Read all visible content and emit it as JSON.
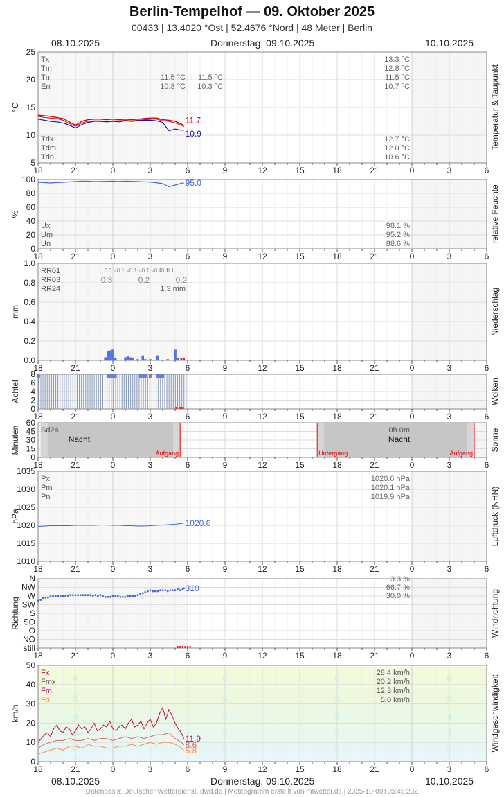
{
  "header": {
    "title": "Berlin-Tempelhof  —  09. Oktober 2025",
    "subtitle": "00433  |  13.4020 °Ost  |  52.4676 °Nord  |  48 Meter  |  Berlin",
    "date_left": "08.10.2025",
    "date_center": "Donnerstag, 09.10.2025",
    "date_right": "10.10.2025"
  },
  "footer": "Datenbasis: Deutscher Wetterdienst, dwd.de | Meteogramm erstellt von mtwetter.de | 2025-10-09T05:45:23Z",
  "colors": {
    "grid": "#dddddd",
    "frame": "#888888",
    "red": "#e00000",
    "blue": "#1010cc",
    "hum": "#4466dd",
    "rain": "#5577ee",
    "sun_night": "#c4c4c4",
    "marker": "#ee2222",
    "wind_fx": "#cc0044",
    "wind_fmx": "#dd6666",
    "wind_fn": "#ff8844"
  },
  "x_axis": {
    "ticks": [
      "18",
      "21",
      "0",
      "3",
      "6",
      "9",
      "12",
      "15",
      "18",
      "21",
      "0",
      "3",
      "6"
    ],
    "hours_start": 0,
    "hours_end": 36,
    "now_hour": 11.7
  },
  "chart_data": [
    {
      "id": "temperature",
      "type": "line",
      "ylabel": "°C",
      "side_label": "Temperatur & Taupunkt",
      "ylim": [
        5,
        25
      ],
      "yticks": [
        5,
        10,
        15,
        20,
        25
      ],
      "stats_top": [
        {
          "label": "Tx",
          "values": [
            "",
            "",
            "13.3 °C"
          ]
        },
        {
          "label": "Tm",
          "values": [
            "",
            "",
            "12.8 °C"
          ]
        },
        {
          "label": "Tn",
          "values": [
            "11.5 °C",
            "11.5 °C",
            "11.5 °C"
          ]
        },
        {
          "label": "En",
          "values": [
            "10.3 °C",
            "10.3 °C",
            "10.7 °C"
          ]
        }
      ],
      "stats_bottom": [
        {
          "label": "Tdx",
          "values": [
            "12.7 °C"
          ]
        },
        {
          "label": "Tdm",
          "values": [
            "12.0 °C"
          ]
        },
        {
          "label": "Tdn",
          "values": [
            "10.6 °C"
          ]
        }
      ],
      "series": [
        {
          "name": "Temperatur",
          "last_label": "11.7",
          "x": [
            0,
            0.5,
            1,
            1.5,
            2,
            2.5,
            3,
            3.5,
            4,
            4.5,
            5,
            5.5,
            6,
            6.5,
            7,
            7.5,
            8,
            8.5,
            9,
            9.5,
            10,
            10.5,
            11,
            11.5,
            11.7
          ],
          "y": [
            13.6,
            13.5,
            13.4,
            13.2,
            13.0,
            12.4,
            11.8,
            12.5,
            12.8,
            12.9,
            12.9,
            12.8,
            12.9,
            12.8,
            12.9,
            12.8,
            12.9,
            13.0,
            13.1,
            13.1,
            12.8,
            12.7,
            12.5,
            12.0,
            11.7
          ]
        },
        {
          "name": "Temperatur 2",
          "x": [
            0,
            0.5,
            1,
            1.5,
            2,
            2.5,
            3,
            3.5,
            4,
            4.5,
            5,
            5.5,
            6,
            6.5,
            7,
            7.5,
            8,
            8.5,
            9,
            9.5,
            10,
            10.5,
            11,
            11.5,
            11.7
          ],
          "y": [
            13.4,
            13.2,
            13.1,
            13.0,
            12.7,
            12.1,
            11.6,
            12.2,
            12.5,
            12.6,
            12.6,
            12.5,
            12.6,
            12.6,
            12.7,
            12.6,
            12.7,
            12.8,
            12.9,
            12.9,
            12.6,
            12.5,
            12.2,
            11.8,
            11.5
          ]
        },
        {
          "name": "Taupunkt",
          "last_label": "10.9",
          "x": [
            0,
            0.5,
            1,
            1.5,
            2,
            2.5,
            3,
            3.5,
            4,
            4.5,
            5,
            5.5,
            6,
            6.5,
            7,
            7.5,
            8,
            8.5,
            9,
            9.5,
            10,
            10.5,
            11,
            11.5,
            11.7
          ],
          "y": [
            12.9,
            12.7,
            12.5,
            12.4,
            12.2,
            11.8,
            11.3,
            11.9,
            12.3,
            12.5,
            12.5,
            12.4,
            12.5,
            12.4,
            12.6,
            12.5,
            12.6,
            12.7,
            12.7,
            12.6,
            12.3,
            10.8,
            11.1,
            10.9,
            10.9
          ]
        }
      ]
    },
    {
      "id": "humidity",
      "type": "line",
      "ylabel": "%",
      "side_label": "relative Feuchte",
      "ylim": [
        0,
        100
      ],
      "yticks": [
        0,
        20,
        40,
        60,
        80,
        100
      ],
      "stats": [
        {
          "label": "Ux",
          "value": "98.1 %"
        },
        {
          "label": "Um",
          "value": "95.2 %"
        },
        {
          "label": "Un",
          "value": "88.6 %"
        }
      ],
      "series": [
        {
          "name": "Feuchte",
          "last_label": "95.0",
          "x": [
            0,
            0.5,
            1,
            1.5,
            2,
            2.5,
            3,
            3.5,
            4,
            4.5,
            5,
            5.5,
            6,
            6.5,
            7,
            7.5,
            8,
            8.5,
            9,
            9.5,
            10,
            10.5,
            11,
            11.5,
            11.7
          ],
          "y": [
            96,
            95.5,
            95,
            95.6,
            96,
            96.5,
            97,
            97.5,
            97.5,
            97,
            97.2,
            97.4,
            97.5,
            97.2,
            97.5,
            97.4,
            97,
            96.6,
            96.2,
            95.4,
            94,
            89.5,
            92,
            94.5,
            95
          ]
        }
      ]
    },
    {
      "id": "precipitation",
      "type": "bar",
      "ylabel": "mm",
      "side_label": "Niederschlag",
      "ylim": [
        0,
        1.0
      ],
      "yticks": [
        0.0,
        0.2,
        0.4,
        0.6,
        0.8,
        1.0
      ],
      "rr_labels": [
        "RR01",
        "RR03",
        "RR24"
      ],
      "rr01_values": [
        "0.3",
        "<0.1",
        "<0.1",
        "<0.1",
        "<0.1",
        "<0.1",
        "0.1"
      ],
      "rr03_values": [
        "0.3",
        "0.2",
        "0.2"
      ],
      "rr24_value": "1.3 mm",
      "bars": {
        "x": [
          5.4,
          5.6,
          5.8,
          6.0,
          6.2,
          7.0,
          7.2,
          7.4,
          7.6,
          8.0,
          8.4,
          8.6,
          9.0,
          9.6,
          10.4,
          11.0,
          11.2
        ],
        "y": [
          0.03,
          0.09,
          0.1,
          0.11,
          0.02,
          0.03,
          0.04,
          0.03,
          0.02,
          0.01,
          0.05,
          0.01,
          0.01,
          0.05,
          0.01,
          0.11,
          0.02
        ]
      },
      "missing_markers": [
        11.5,
        11.7
      ]
    },
    {
      "id": "clouds",
      "type": "bar",
      "ylabel": "Achtel",
      "side_label": "Wolken",
      "ylim": [
        0,
        8
      ],
      "yticks": [
        0,
        2,
        4,
        6,
        8
      ],
      "values": [
        8,
        8,
        8,
        8,
        8,
        8,
        8,
        8,
        8,
        8,
        8,
        8,
        8,
        8,
        8,
        8,
        8,
        8,
        8,
        8,
        8,
        8,
        8,
        8,
        8,
        8,
        8,
        8,
        8,
        8,
        8,
        8,
        8,
        8,
        8,
        8,
        8,
        8,
        8,
        8,
        8,
        8,
        8,
        8,
        8,
        8,
        8,
        8,
        8,
        8,
        8,
        8,
        8,
        8,
        8,
        8,
        8,
        8,
        8,
        8,
        8,
        8,
        8,
        8,
        8,
        8,
        8,
        8,
        8,
        8
      ],
      "highlight_hours": [
        0.05,
        5.6,
        5.8,
        6.0,
        6.2,
        8.2,
        8.4,
        8.6,
        9.0,
        9.6,
        9.8,
        10.0
      ],
      "missing_markers": [
        11.1,
        11.4,
        11.6
      ]
    },
    {
      "id": "sunshine",
      "type": "area",
      "ylabel": "Minuten",
      "side_label": "Sonne",
      "ylim": [
        0,
        60
      ],
      "yticks": [
        0,
        15,
        30,
        45,
        60
      ],
      "sd24_label": "Sd24",
      "sd24_value": "0h 0m",
      "night_label": "Nacht",
      "night_periods": [
        [
          0.2,
          11.4
        ],
        [
          22.4,
          35.0
        ]
      ],
      "events": [
        {
          "hour": 11.4,
          "label": "Aufgang",
          "anchor": "end"
        },
        {
          "hour": 22.4,
          "label": "Untergang",
          "anchor": "start"
        },
        {
          "hour": 35.0,
          "label": "Aufgang",
          "anchor": "end"
        }
      ]
    },
    {
      "id": "pressure",
      "type": "line",
      "ylabel": "hPa",
      "side_label": "Luftdruck (NHN)",
      "ylim": [
        1010,
        1035
      ],
      "yticks": [
        1010,
        1015,
        1020,
        1025,
        1030,
        1035
      ],
      "stats": [
        {
          "label": "Px",
          "value": "1020.6 hPa"
        },
        {
          "label": "Pm",
          "value": "1020.1 hPa"
        },
        {
          "label": "Pn",
          "value": "1019.9 hPa"
        }
      ],
      "series": [
        {
          "name": "Luftdruck",
          "last_label": "1020.6",
          "x": [
            0,
            0.5,
            1,
            1.5,
            2,
            2.5,
            3,
            3.5,
            4,
            4.5,
            5,
            5.5,
            6,
            6.5,
            7,
            7.5,
            8,
            8.5,
            9,
            9.5,
            10,
            10.5,
            11,
            11.5,
            11.7
          ],
          "y": [
            1019.7,
            1019.8,
            1019.9,
            1019.9,
            1019.9,
            1019.9,
            1020.0,
            1020.0,
            1020.0,
            1020.0,
            1020.1,
            1020.1,
            1020.0,
            1020.0,
            1019.9,
            1019.9,
            1019.8,
            1019.8,
            1019.9,
            1020.0,
            1020.1,
            1020.2,
            1020.3,
            1020.5,
            1020.6
          ]
        }
      ]
    },
    {
      "id": "wind_direction",
      "type": "scatter",
      "ylabel": "Richtung",
      "side_label": "Windrichtung",
      "categories": [
        "still",
        "NO",
        "O",
        "SO",
        "S",
        "SW",
        "W",
        "NW",
        "N"
      ],
      "stats": [
        "3.3 %",
        "66.7 %",
        "30.0 %"
      ],
      "last_label": "310",
      "x": [
        0,
        0.2,
        0.4,
        0.6,
        0.8,
        1,
        1.2,
        1.4,
        1.6,
        1.8,
        2,
        2.2,
        2.4,
        2.6,
        2.8,
        3,
        3.2,
        3.4,
        3.6,
        3.8,
        4,
        4.2,
        4.4,
        4.6,
        4.8,
        5,
        5.2,
        5.4,
        5.6,
        5.8,
        6,
        6.2,
        6.4,
        6.6,
        6.8,
        7,
        7.2,
        7.4,
        7.6,
        7.8,
        8,
        8.2,
        8.4,
        8.6,
        8.8,
        9,
        9.2,
        9.4,
        9.6,
        9.8,
        10,
        10.2,
        10.4,
        10.6,
        10.8,
        11,
        11.2,
        11.4,
        11.6,
        11.7
      ],
      "y": [
        245,
        250,
        258,
        262,
        262,
        268,
        270,
        270,
        270,
        270,
        270,
        270,
        272,
        275,
        275,
        275,
        275,
        275,
        275,
        275,
        275,
        275,
        272,
        275,
        270,
        275,
        270,
        265,
        265,
        265,
        270,
        270,
        270,
        265,
        265,
        265,
        270,
        270,
        270,
        270,
        275,
        280,
        285,
        290,
        295,
        300,
        295,
        295,
        295,
        300,
        300,
        300,
        295,
        300,
        300,
        300,
        305,
        300,
        305,
        310
      ],
      "still_markers": [
        11.2,
        11.4,
        11.6,
        11.8,
        12.0,
        12.2
      ]
    },
    {
      "id": "wind_speed",
      "type": "line",
      "ylabel": "km/h",
      "side_label": "Windgeschwindigkeit",
      "ylim": [
        0,
        50
      ],
      "yticks": [
        0,
        10,
        20,
        30,
        40,
        50
      ],
      "stats": [
        {
          "label": "Fx",
          "value": "28.4 km/h",
          "color": "#cc0044"
        },
        {
          "label": "Fmx",
          "value": "20.2 km/h",
          "color": "#555555"
        },
        {
          "label": "Fm",
          "value": "12.3 km/h",
          "color": "#cc0044"
        },
        {
          "label": "Fn",
          "value": "5.0 km/h",
          "color": "#ff8844"
        }
      ],
      "beaufort_bands": [
        {
          "bf": "1",
          "from": 0,
          "to": 5,
          "color": "#e8f8f8"
        },
        {
          "bf": "2",
          "from": 5,
          "to": 11,
          "color": "#e6f6f4"
        },
        {
          "bf": "3",
          "from": 11,
          "to": 19,
          "color": "#e8f8ee"
        },
        {
          "bf": "4",
          "from": 19,
          "to": 28,
          "color": "#eaf8e6"
        },
        {
          "bf": "5",
          "from": 28,
          "to": 38,
          "color": "#eef8de"
        },
        {
          "bf": "6",
          "from": 38,
          "to": 49,
          "color": "#f2fadc"
        }
      ],
      "beaufort_label_hours": [
        3,
        15,
        24,
        33
      ],
      "series": [
        {
          "name": "Fx",
          "color": "#cc0044",
          "last_label": "11.9",
          "x": [
            0,
            0.25,
            0.5,
            0.75,
            1,
            1.25,
            1.5,
            1.75,
            2,
            2.25,
            2.5,
            2.75,
            3,
            3.25,
            3.5,
            3.75,
            4,
            4.25,
            4.5,
            4.75,
            5,
            5.25,
            5.5,
            5.75,
            6,
            6.25,
            6.5,
            6.75,
            7,
            7.25,
            7.5,
            7.75,
            8,
            8.25,
            8.5,
            8.75,
            9,
            9.25,
            9.5,
            9.75,
            10,
            10.25,
            10.5,
            10.75,
            11,
            11.25,
            11.5,
            11.7
          ],
          "y": [
            10,
            12,
            14,
            15,
            13,
            17,
            19,
            16,
            15,
            18,
            17,
            14,
            16,
            19,
            17,
            18,
            15,
            17,
            20,
            16,
            17,
            19,
            18,
            21,
            17,
            16,
            18,
            19,
            17,
            20,
            22,
            18,
            19,
            21,
            17,
            20,
            22,
            18,
            20,
            25,
            28,
            22,
            27,
            24,
            20,
            17,
            15,
            11.9
          ]
        },
        {
          "name": "Fm",
          "color": "#dd6666",
          "last_label": "8.6",
          "x": [
            0,
            0.5,
            1,
            1.5,
            2,
            2.5,
            3,
            3.5,
            4,
            4.5,
            5,
            5.5,
            6,
            6.5,
            7,
            7.5,
            8,
            8.5,
            9,
            9.5,
            10,
            10.5,
            11,
            11.5,
            11.7
          ],
          "y": [
            7,
            9,
            10,
            11,
            11,
            12,
            11,
            11,
            12,
            11,
            12,
            12,
            11,
            12,
            13,
            12,
            13,
            12,
            13,
            14,
            14,
            15,
            12,
            10,
            8.6
          ]
        },
        {
          "name": "Fn",
          "color": "#ff8844",
          "last_label": "5.8",
          "x": [
            0,
            0.5,
            1,
            1.5,
            2,
            2.5,
            3,
            3.5,
            4,
            4.5,
            5,
            5.5,
            6,
            6.5,
            7,
            7.5,
            8,
            8.5,
            9,
            9.5,
            10,
            10.5,
            11,
            11.5,
            11.7
          ],
          "y": [
            4,
            5,
            6,
            7,
            6,
            8,
            8,
            7,
            9,
            8,
            8,
            7,
            7,
            8,
            8,
            9,
            8,
            9,
            10,
            9,
            10,
            10,
            9,
            7,
            5.8
          ]
        }
      ]
    }
  ]
}
